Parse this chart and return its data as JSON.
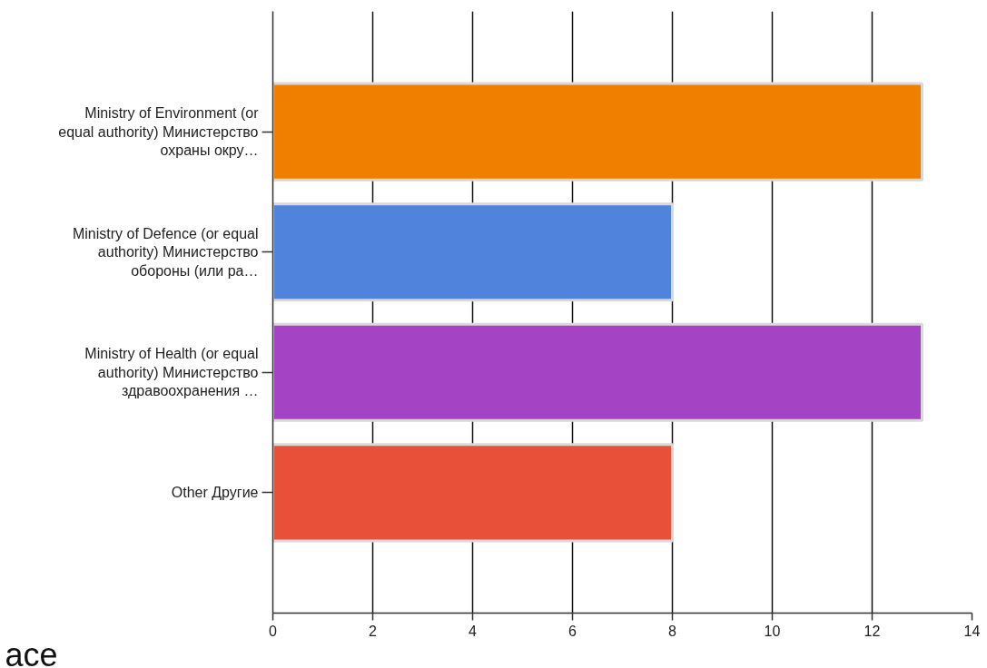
{
  "chart_data": {
    "type": "bar",
    "orientation": "horizontal",
    "categories": [
      "Ministry of Environment (or equal authority) Министерство охраны окру…",
      "Ministry of Defence (or equal authority) Министерство обороны (или ра…",
      "Ministry of Health (or equal authority) Министерство здравоохранения …",
      "Other Другие"
    ],
    "values": [
      13,
      8,
      13,
      8
    ],
    "colors": [
      "#f07f00",
      "#4f83dc",
      "#a444c4",
      "#e9503a"
    ],
    "xlim": [
      0,
      14
    ],
    "xticks": [
      0,
      2,
      4,
      6,
      8,
      10,
      12,
      14
    ],
    "grid": "x",
    "annotations": [
      "ace"
    ]
  }
}
